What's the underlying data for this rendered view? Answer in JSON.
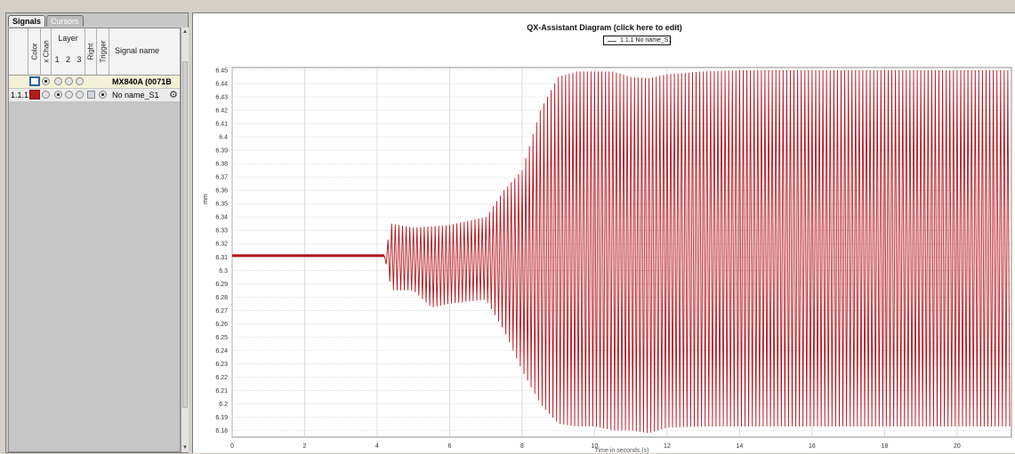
{
  "signals_panel": {
    "tabs": [
      "Signals",
      "Cursors"
    ],
    "headers": {
      "color": "Color",
      "xchan": "x Chan",
      "layer": "Layer",
      "layer_numbers": [
        "1",
        "2",
        "3"
      ],
      "right": "Right",
      "trigger": "Trigger",
      "signal_name": "Signal name"
    },
    "rows": [
      {
        "index": "",
        "color": "#ffffff",
        "border": "#2f5fa8",
        "signal": "MX840A (0071B"
      },
      {
        "index": "1.1.1",
        "color": "#b01c1c",
        "border": "#8a1010",
        "signal": "No name_S1"
      }
    ]
  },
  "chart": {
    "title": "QX-Assistant Diagram (click here to edit)",
    "legend": "1.1.1 No name_S1",
    "ylabel": "mm",
    "xlabel": "Time in seconds (s)",
    "line_color": "#b5141c"
  },
  "chart_data": {
    "type": "line",
    "title": "QX-Assistant Diagram (click here to edit)",
    "ylabel": "mm",
    "xlim": [
      0,
      21.5
    ],
    "ylim": [
      6.175,
      6.452
    ],
    "x_ticks": [
      0,
      2,
      4,
      6,
      8,
      10,
      12,
      14,
      16,
      18,
      20
    ],
    "y_ticks": [
      6.18,
      6.19,
      6.2,
      6.21,
      6.22,
      6.23,
      6.24,
      6.25,
      6.26,
      6.27,
      6.28,
      6.29,
      6.3,
      6.31,
      6.32,
      6.33,
      6.34,
      6.35,
      6.36,
      6.37,
      6.38,
      6.39,
      6.4,
      6.41,
      6.42,
      6.43,
      6.44,
      6.45
    ],
    "grid": true,
    "legend_position": "top-center",
    "series": [
      {
        "name": "1.1.1 No name_S1",
        "baseline": {
          "x": [
            0,
            4.2
          ],
          "y": 6.311
        },
        "envelope": {
          "x": [
            4.2,
            4.4,
            5.0,
            5.5,
            6.0,
            7.0,
            7.5,
            8.0,
            8.5,
            9.0,
            9.5,
            10.0,
            10.5,
            11.0,
            11.5,
            12.0,
            13.0,
            14.0,
            16.0,
            18.0,
            20.0,
            21.5
          ],
          "max": [
            6.311,
            6.335,
            6.332,
            6.333,
            6.334,
            6.34,
            6.36,
            6.375,
            6.42,
            6.445,
            6.449,
            6.449,
            6.449,
            6.445,
            6.444,
            6.447,
            6.449,
            6.45,
            6.45,
            6.45,
            6.45,
            6.45
          ],
          "min": [
            6.311,
            6.285,
            6.285,
            6.272,
            6.275,
            6.278,
            6.255,
            6.225,
            6.2,
            6.185,
            6.183,
            6.183,
            6.18,
            6.18,
            6.178,
            6.182,
            6.183,
            6.183,
            6.183,
            6.183,
            6.183,
            6.183
          ]
        },
        "oscillation_period_s": 0.1
      }
    ]
  }
}
